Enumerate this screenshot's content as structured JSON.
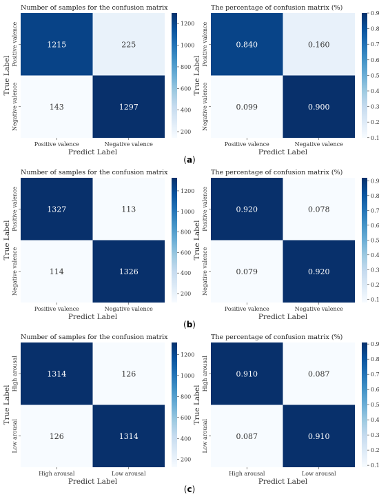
{
  "colors": {
    "cmap": [
      "#f7fbff",
      "#deebf7",
      "#c6dbef",
      "#9ecae1",
      "#6baed6",
      "#4292c6",
      "#2171b5",
      "#08519c",
      "#08306b"
    ],
    "text_light": "#ffffff",
    "text_dark": "#333333"
  },
  "captions": [
    "(a)",
    "(b)",
    "(c)"
  ],
  "chart_data": [
    {
      "type": "heatmap",
      "title": "Number of samples for the confusion matrix",
      "xlabel": "Predict Label",
      "ylabel": "True Label",
      "x_categories": [
        "Positive valence",
        "Negative valence"
      ],
      "y_categories": [
        "Positive valence",
        "Negative valence"
      ],
      "values": [
        [
          1215,
          225
        ],
        [
          143,
          1297
        ]
      ],
      "labels": [
        [
          "1215",
          "225"
        ],
        [
          "143",
          "1297"
        ]
      ],
      "colorbar": {
        "min": 143,
        "max": 1297,
        "ticks": [
          200,
          400,
          600,
          800,
          1000,
          1200
        ],
        "tick_labels": [
          "200",
          "400",
          "600",
          "800",
          "1000",
          "1200"
        ]
      }
    },
    {
      "type": "heatmap",
      "title": "The percentage of confusion matrix (%)",
      "xlabel": "Predict Label",
      "ylabel": "True Label",
      "x_categories": [
        "Positive valence",
        "Negative valence"
      ],
      "y_categories": [
        "Positive valence",
        "Negative valence"
      ],
      "values": [
        [
          0.84,
          0.16
        ],
        [
          0.099,
          0.9
        ]
      ],
      "labels": [
        [
          "0.840",
          "0.160"
        ],
        [
          "0.099",
          "0.900"
        ]
      ],
      "colorbar": {
        "min": 0.099,
        "max": 0.9,
        "ticks": [
          0.1,
          0.2,
          0.3,
          0.4,
          0.5,
          0.6,
          0.7,
          0.8,
          0.9
        ],
        "tick_labels": [
          "0.1",
          "0.2",
          "0.3",
          "0.4",
          "0.5",
          "0.6",
          "0.7",
          "0.8",
          "0.9"
        ]
      }
    },
    {
      "type": "heatmap",
      "title": "Number of samples for the confusion matrix",
      "xlabel": "Predict Label",
      "ylabel": "True Label",
      "x_categories": [
        "Positive valence",
        "Negative valence"
      ],
      "y_categories": [
        "Positive valence",
        "Negative valence"
      ],
      "values": [
        [
          1327,
          113
        ],
        [
          114,
          1326
        ]
      ],
      "labels": [
        [
          "1327",
          "113"
        ],
        [
          "114",
          "1326"
        ]
      ],
      "colorbar": {
        "min": 113,
        "max": 1327,
        "ticks": [
          200,
          400,
          600,
          800,
          1000,
          1200
        ],
        "tick_labels": [
          "200",
          "400",
          "600",
          "800",
          "1000",
          "1200"
        ]
      }
    },
    {
      "type": "heatmap",
      "title": "The percentage of confusion matrix (%)",
      "xlabel": "Predict Label",
      "ylabel": "True Label",
      "x_categories": [
        "Positive valence",
        "Negative valence"
      ],
      "y_categories": [
        "Positive valence",
        "Negative valence"
      ],
      "values": [
        [
          0.92,
          0.078
        ],
        [
          0.079,
          0.92
        ]
      ],
      "labels": [
        [
          "0.920",
          "0.078"
        ],
        [
          "0.079",
          "0.920"
        ]
      ],
      "colorbar": {
        "min": 0.078,
        "max": 0.92,
        "ticks": [
          0.1,
          0.2,
          0.3,
          0.4,
          0.5,
          0.6,
          0.7,
          0.8,
          0.9
        ],
        "tick_labels": [
          "0.1",
          "0.2",
          "0.3",
          "0.4",
          "0.5",
          "0.6",
          "0.7",
          "0.8",
          "0.9"
        ]
      }
    },
    {
      "type": "heatmap",
      "title": "Number of samples for the confusion matrix",
      "xlabel": "Predict Label",
      "ylabel": "True Label",
      "x_categories": [
        "High arousal",
        "Low arousal"
      ],
      "y_categories": [
        "High arousal",
        "Low arousal"
      ],
      "values": [
        [
          1314,
          126
        ],
        [
          126,
          1314
        ]
      ],
      "labels": [
        [
          "1314",
          "126"
        ],
        [
          "126",
          "1314"
        ]
      ],
      "colorbar": {
        "min": 126,
        "max": 1314,
        "ticks": [
          200,
          400,
          600,
          800,
          1000,
          1200
        ],
        "tick_labels": [
          "200",
          "400",
          "600",
          "800",
          "1000",
          "1200"
        ]
      }
    },
    {
      "type": "heatmap",
      "title": "The percentage of confusion matrix (%)",
      "xlabel": "Predict Label",
      "ylabel": "True Label",
      "x_categories": [
        "High arousal",
        "Low arousal"
      ],
      "y_categories": [
        "High arousal",
        "Low arousal"
      ],
      "values": [
        [
          0.91,
          0.087
        ],
        [
          0.087,
          0.91
        ]
      ],
      "labels": [
        [
          "0.910",
          "0.087"
        ],
        [
          "0.087",
          "0.910"
        ]
      ],
      "colorbar": {
        "min": 0.087,
        "max": 0.91,
        "ticks": [
          0.1,
          0.2,
          0.3,
          0.4,
          0.5,
          0.6,
          0.7,
          0.8,
          0.9
        ],
        "tick_labels": [
          "0.1",
          "0.2",
          "0.3",
          "0.4",
          "0.5",
          "0.6",
          "0.7",
          "0.8",
          "0.9"
        ]
      }
    }
  ]
}
